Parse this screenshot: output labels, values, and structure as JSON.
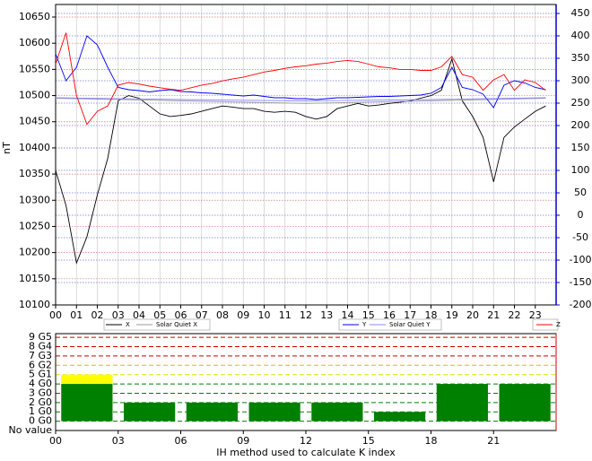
{
  "chart_data": [
    {
      "type": "line",
      "y_label": "nT",
      "x": [
        0,
        0.5,
        1,
        1.5,
        2,
        2.5,
        3,
        3.5,
        4,
        4.5,
        5,
        5.5,
        6,
        6.5,
        7,
        7.5,
        8,
        8.5,
        9,
        9.5,
        10,
        10.5,
        11,
        11.5,
        12,
        12.5,
        13,
        13.5,
        14,
        14.5,
        15,
        15.5,
        16,
        16.5,
        17,
        17.5,
        18,
        18.5,
        19,
        19.5,
        20,
        20.5,
        21,
        21.5,
        22,
        22.5,
        23,
        23.5
      ],
      "xlim": [
        0,
        24
      ],
      "xticks": [
        {
          "value": 0,
          "label": "00"
        },
        {
          "value": 1,
          "label": "01"
        },
        {
          "value": 2,
          "label": "02"
        },
        {
          "value": 3,
          "label": "03"
        },
        {
          "value": 4,
          "label": "04"
        },
        {
          "value": 5,
          "label": "05"
        },
        {
          "value": 6,
          "label": "06"
        },
        {
          "value": 7,
          "label": "07"
        },
        {
          "value": 8,
          "label": "08"
        },
        {
          "value": 9,
          "label": "09"
        },
        {
          "value": 10,
          "label": "10"
        },
        {
          "value": 11,
          "label": "11"
        },
        {
          "value": 12,
          "label": "12"
        },
        {
          "value": 13,
          "label": "13"
        },
        {
          "value": 14,
          "label": "14"
        },
        {
          "value": 15,
          "label": "15"
        },
        {
          "value": 16,
          "label": "16"
        },
        {
          "value": 17,
          "label": "17"
        },
        {
          "value": 18,
          "label": "18"
        },
        {
          "value": 19,
          "label": "19"
        },
        {
          "value": 20,
          "label": "20"
        },
        {
          "value": 21,
          "label": "21"
        },
        {
          "value": 22,
          "label": "22"
        },
        {
          "value": 23,
          "label": "23"
        }
      ],
      "ylim": [
        10100,
        10674
      ],
      "yticks": [
        10100,
        10150,
        10200,
        10250,
        10300,
        10350,
        10400,
        10450,
        10500,
        10550,
        10600,
        10650
      ],
      "y2lim": [
        -200,
        470
      ],
      "y2ticks": [
        -200,
        -150,
        -100,
        -50,
        0,
        50,
        100,
        150,
        200,
        250,
        300,
        350,
        400,
        450
      ],
      "y2_color": "#0000cc",
      "grid": true,
      "series": [
        {
          "name": "X",
          "color": "#000000",
          "axis": "y",
          "values": [
            10357,
            10290,
            10180,
            10230,
            10310,
            10380,
            10490,
            10500,
            10495,
            10480,
            10465,
            10460,
            10462,
            10465,
            10470,
            10475,
            10480,
            10478,
            10475,
            10475,
            10470,
            10468,
            10470,
            10468,
            10460,
            10455,
            10460,
            10475,
            10480,
            10485,
            10480,
            10482,
            10485,
            10487,
            10490,
            10495,
            10500,
            10510,
            10570,
            10490,
            10460,
            10420,
            10335,
            10420,
            10440,
            10455,
            10470,
            10480
          ]
        },
        {
          "name": "Solar Quiet X",
          "color": "#999999",
          "axis": "y",
          "x": [
            0,
            6,
            12,
            18,
            23.5
          ],
          "values": [
            10495,
            10490,
            10485,
            10490,
            10495
          ]
        },
        {
          "name": "Y",
          "color": "#0000ff",
          "axis": "y2",
          "values": [
            360,
            300,
            330,
            400,
            380,
            330,
            285,
            280,
            278,
            275,
            278,
            280,
            276,
            275,
            273,
            272,
            270,
            268,
            266,
            268,
            265,
            262,
            262,
            260,
            260,
            258,
            260,
            262,
            262,
            263,
            264,
            265,
            265,
            266,
            267,
            268,
            272,
            285,
            330,
            285,
            280,
            270,
            240,
            290,
            300,
            295,
            285,
            280
          ]
        },
        {
          "name": "Solar Quiet Y",
          "color": "#8888ff",
          "axis": "y2",
          "x": [
            0,
            6,
            12,
            18,
            23.5
          ],
          "values": [
            262,
            258,
            255,
            258,
            262
          ]
        },
        {
          "name": "Z",
          "color": "#ff0000",
          "axis": "y",
          "values": [
            10560,
            10620,
            10500,
            10445,
            10470,
            10480,
            10520,
            10525,
            10522,
            10518,
            10515,
            10512,
            10510,
            10515,
            10520,
            10523,
            10528,
            10532,
            10535,
            10540,
            10545,
            10548,
            10552,
            10555,
            10557,
            10560,
            10562,
            10565,
            10567,
            10565,
            10560,
            10555,
            10553,
            10550,
            10550,
            10548,
            10548,
            10555,
            10575,
            10540,
            10535,
            10510,
            10530,
            10540,
            10510,
            10530,
            10525,
            10510
          ]
        }
      ]
    },
    {
      "type": "bar",
      "x_label": "IH method used to calculate K index",
      "x": [
        1.5,
        4.5,
        7.5,
        10.5,
        13.5,
        16.5,
        19.5,
        22.5
      ],
      "xlim": [
        0,
        24
      ],
      "xticks": [
        {
          "value": 0,
          "label": "00"
        },
        {
          "value": 3,
          "label": "03"
        },
        {
          "value": 6,
          "label": "06"
        },
        {
          "value": 9,
          "label": "09"
        },
        {
          "value": 12,
          "label": "12"
        },
        {
          "value": 15,
          "label": "15"
        },
        {
          "value": 18,
          "label": "18"
        },
        {
          "value": 21,
          "label": "21"
        }
      ],
      "ylim": [
        -1,
        9.4
      ],
      "yticks": [
        {
          "value": -1,
          "label": "No value"
        },
        {
          "value": 0,
          "label": "0 G0"
        },
        {
          "value": 1,
          "label": "1 G0"
        },
        {
          "value": 2,
          "label": "2 G0"
        },
        {
          "value": 3,
          "label": "3 G0"
        },
        {
          "value": 4,
          "label": "4 G0"
        },
        {
          "value": 5,
          "label": "5 G1"
        },
        {
          "value": 6,
          "label": "6 G2"
        },
        {
          "value": 7,
          "label": "7 G3"
        },
        {
          "value": 8,
          "label": "8 G4"
        },
        {
          "value": 9,
          "label": "9 G5"
        }
      ],
      "ytick_label_colors": [
        "#000000",
        "#000000",
        "#000000",
        "#000000",
        "#000000",
        "#000000",
        "#e0e000",
        "#e6b800",
        "#cc0000",
        "#cc0000",
        "#cc0000"
      ],
      "grid_colors": [
        "#000000",
        "#008000",
        "#008000",
        "#008000",
        "#008000",
        "#008000",
        "#e0e000",
        "#e6b800",
        "#cc0000",
        "#cc0000",
        "#cc0000"
      ],
      "series": [
        {
          "color": "#ffff00",
          "values": [
            5,
            null,
            null,
            null,
            null,
            null,
            null,
            null
          ]
        },
        {
          "color": "#008000",
          "values": [
            4,
            2,
            2,
            2,
            2,
            1,
            4,
            4
          ]
        }
      ]
    }
  ]
}
